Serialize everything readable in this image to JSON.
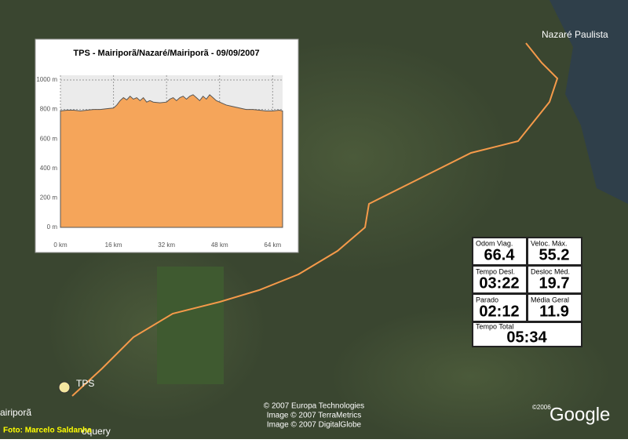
{
  "map": {
    "labels": {
      "nazare": "Nazaré Paulista",
      "tps": "TPS",
      "mairipora": "airiporã",
      "caieiras": "oquery"
    },
    "credits": {
      "europa": "© 2007 Europa Technologies",
      "terrametrics": "Image © 2007 TerraMetrics",
      "digitalglobe": "Image © 2007 DigitalGlobe",
      "year": "©2006",
      "google": "Google",
      "photo": "Foto: Marcelo Saldanha"
    }
  },
  "chart_data": {
    "type": "area",
    "title": "TPS - Mairiporã/Nazaré/Mairiporã - 09/09/2007",
    "color": "#f5a55a",
    "grid": true,
    "x": [
      0,
      2,
      4,
      6,
      8,
      10,
      12,
      14,
      16,
      17,
      18,
      19,
      20,
      21,
      22,
      23,
      24,
      25,
      26,
      27,
      28,
      30,
      32,
      33,
      34,
      35,
      36,
      37,
      38,
      39,
      40,
      41,
      42,
      43,
      44,
      45,
      46,
      47,
      48,
      50,
      52,
      54,
      56,
      58,
      60,
      62,
      64,
      66,
      67
    ],
    "values": [
      790,
      795,
      795,
      790,
      795,
      800,
      800,
      805,
      810,
      830,
      860,
      880,
      865,
      890,
      870,
      880,
      860,
      880,
      850,
      860,
      850,
      845,
      850,
      870,
      880,
      860,
      880,
      890,
      870,
      890,
      900,
      880,
      860,
      890,
      870,
      900,
      880,
      860,
      850,
      830,
      820,
      810,
      800,
      800,
      795,
      790,
      790,
      795,
      790
    ],
    "xlim": [
      0,
      67
    ],
    "ylim": [
      0,
      1000
    ],
    "xticks": [
      {
        "value": 0,
        "label": "0 km"
      },
      {
        "value": 16,
        "label": "16 km"
      },
      {
        "value": 32,
        "label": "32 km"
      },
      {
        "value": 48,
        "label": "48 km"
      },
      {
        "value": 64,
        "label": "64 km"
      }
    ],
    "yticks": [
      {
        "value": 0,
        "label": "0 m"
      },
      {
        "value": 200,
        "label": "200 m"
      },
      {
        "value": 400,
        "label": "400 m"
      },
      {
        "value": 600,
        "label": "600 m"
      },
      {
        "value": 800,
        "label": "800 m"
      },
      {
        "value": 1000,
        "label": "1000 m"
      }
    ]
  },
  "gps": {
    "fields": [
      {
        "label": "Odom Viag.",
        "value": 66.4
      },
      {
        "label": "Veloc. Máx.",
        "value": 55.2
      },
      {
        "label": "Tempo Desl.",
        "value": "03:22"
      },
      {
        "label": "Desloc Méd.",
        "value": 19.7
      },
      {
        "label": "Parado",
        "value": "02:12"
      },
      {
        "label": "Média Geral",
        "value": 11.9
      }
    ],
    "total": {
      "label": "Tempo Total",
      "value": "05:34"
    }
  }
}
